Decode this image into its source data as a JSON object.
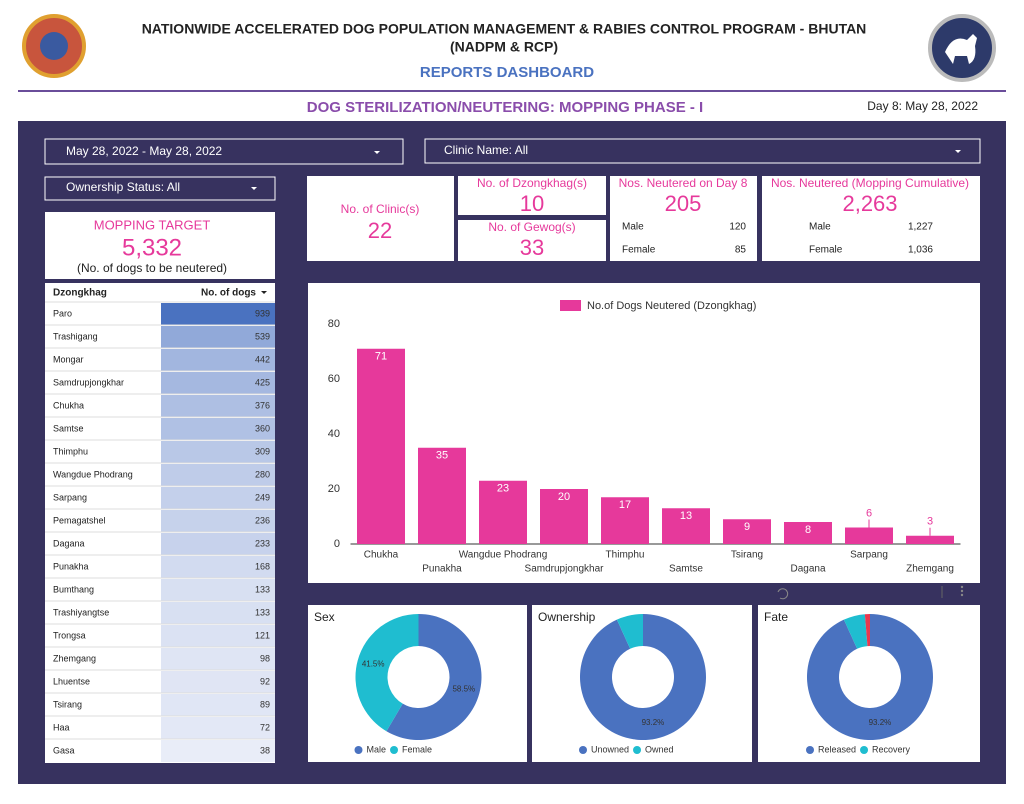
{
  "header": {
    "title_line1": "NATIONWIDE ACCELERATED DOG POPULATION MANAGEMENT & RABIES CONTROL PROGRAM - BHUTAN",
    "title_line2": "(NADPM & RCP)",
    "dashboard": "REPORTS DASHBOARD",
    "subtitle": "DOG STERILIZATION/NEUTERING: MOPPING PHASE - I",
    "day": "Day 8: May 28, 2022"
  },
  "filters": {
    "date_range": "May 28, 2022 - May 28, 2022",
    "clinic": "Clinic Name: All",
    "ownership": "Ownership Status: All"
  },
  "target": {
    "label": "MOPPING TARGET",
    "value": "5,332",
    "note": "(No. of dogs to be neutered)"
  },
  "kpis": {
    "clinics": {
      "label": "No. of Clinic(s)",
      "value": "22"
    },
    "dzongkhags": {
      "label": "No. of Dzongkhag(s)",
      "value": "10"
    },
    "gewogs": {
      "label": "No. of Gewog(s)",
      "value": "33"
    },
    "day": {
      "label": "Nos. Neutered on Day 8",
      "value": "205",
      "male_label": "Male",
      "male": "120",
      "female_label": "Female",
      "female": "85"
    },
    "cumulative": {
      "label": "Nos. Neutered (Mopping Cumulative)",
      "value": "2,263",
      "male_label": "Male",
      "male": "1,227",
      "female_label": "Female",
      "female": "1,036"
    }
  },
  "table": {
    "headers": [
      "Dzongkhag",
      "No. of dogs"
    ],
    "rows": [
      [
        "Paro",
        939
      ],
      [
        "Trashigang",
        539
      ],
      [
        "Mongar",
        442
      ],
      [
        "Samdrupjongkhar",
        425
      ],
      [
        "Chukha",
        376
      ],
      [
        "Samtse",
        360
      ],
      [
        "Thimphu",
        309
      ],
      [
        "Wangdue Phodrang",
        280
      ],
      [
        "Sarpang",
        249
      ],
      [
        "Pemagatshel",
        236
      ],
      [
        "Dagana",
        233
      ],
      [
        "Punakha",
        168
      ],
      [
        "Bumthang",
        133
      ],
      [
        "Trashiyangtse",
        133
      ],
      [
        "Trongsa",
        121
      ],
      [
        "Zhemgang",
        98
      ],
      [
        "Lhuentse",
        92
      ],
      [
        "Tsirang",
        89
      ],
      [
        "Haa",
        72
      ],
      [
        "Gasa",
        38
      ]
    ]
  },
  "chart_data": [
    {
      "type": "bar",
      "categories": [
        "Chukha",
        "Punakha",
        "Wangdue Phodrang",
        "Samdrupjongkhar",
        "Thimphu",
        "Samtse",
        "Tsirang",
        "Dagana",
        "Sarpang",
        "Zhemgang"
      ],
      "series": [
        {
          "name": "No.of Dogs Neutered (Dzongkhag)",
          "color": "#e6399b",
          "values": [
            71,
            35,
            23,
            20,
            17,
            13,
            9,
            8,
            6,
            3
          ]
        }
      ],
      "ylim": [
        0,
        80
      ],
      "yticks": [
        0,
        20,
        40,
        60,
        80
      ],
      "legend": "top"
    },
    {
      "type": "pie",
      "title": "Sex",
      "donut": true,
      "categories": [
        "Male",
        "Female"
      ],
      "values": [
        58.5,
        41.5
      ],
      "value_labels": [
        "58.5%",
        "41.5%"
      ],
      "colors": [
        "#4a72c0",
        "#1fbdd0"
      ]
    },
    {
      "type": "pie",
      "title": "Ownership",
      "donut": true,
      "categories": [
        "Unowned",
        "Owned"
      ],
      "values": [
        93.2,
        6.8
      ],
      "value_labels": [
        "93.2%",
        null
      ],
      "colors": [
        "#4a72c0",
        "#1fbdd0"
      ]
    },
    {
      "type": "pie",
      "title": "Fate",
      "donut": true,
      "categories": [
        "Released",
        "Recovery",
        null
      ],
      "values": [
        93.2,
        5.5,
        1.3
      ],
      "value_labels": [
        "93.2%",
        null,
        null
      ],
      "colors": [
        "#4a72c0",
        "#1fbdd0",
        "#e8384f"
      ]
    }
  ]
}
